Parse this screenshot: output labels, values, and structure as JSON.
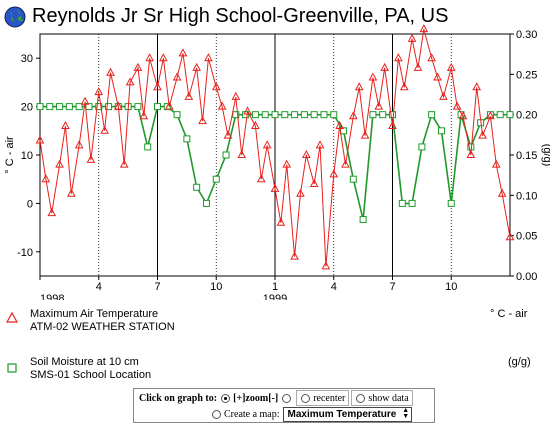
{
  "title": "Reynolds Jr Sr High School-Greenville, PA, US",
  "icons": {
    "logo": "globe-icon"
  },
  "chart_data": {
    "type": "line",
    "title": "Reynolds Jr Sr High School-Greenville, PA, US",
    "left_axis": {
      "label": "° C - air",
      "ylim": [
        -15,
        35
      ],
      "ticks": [
        -10,
        0,
        10,
        20,
        30
      ]
    },
    "right_axis": {
      "label": "(g/g)",
      "ylim": [
        0,
        0.3
      ],
      "ticks": [
        "0.00",
        "0.05",
        "0.10",
        "0.15",
        "0.20",
        "0.25",
        "0.30"
      ]
    },
    "x_axis": {
      "months": [
        "4",
        "7",
        "10",
        "1",
        "4",
        "7",
        "10"
      ],
      "years": [
        "1998",
        "1999"
      ],
      "xlim_months": [
        0,
        24
      ]
    },
    "series": [
      {
        "name": "Maximum Air Temperature",
        "subtitle": "ATM-02 WEATHER STATION",
        "unit": "° C - air",
        "color": "#e8201c",
        "marker": "triangle",
        "axis": "left",
        "month_index": [
          0,
          0.3,
          0.6,
          1,
          1.3,
          1.6,
          2,
          2.3,
          2.6,
          3,
          3.3,
          3.6,
          4,
          4.3,
          4.6,
          5,
          5.3,
          5.6,
          6,
          6.3,
          6.6,
          7,
          7.3,
          7.6,
          8,
          8.3,
          8.6,
          9,
          9.3,
          9.6,
          10,
          10.3,
          10.6,
          11,
          11.3,
          11.6,
          12,
          12.3,
          12.6,
          13,
          13.3,
          13.6,
          14,
          14.3,
          14.6,
          15,
          15.3,
          15.6,
          16,
          16.3,
          16.6,
          17,
          17.3,
          17.6,
          18,
          18.3,
          18.6,
          19,
          19.3,
          19.6,
          20,
          20.3,
          20.6,
          21,
          21.3,
          21.6,
          22,
          22.3,
          22.6,
          23,
          23.3,
          23.6,
          24
        ],
        "values": [
          13,
          5,
          -2,
          8,
          16,
          2,
          12,
          21,
          9,
          23,
          15,
          27,
          20,
          8,
          25,
          28,
          18,
          30,
          24,
          30,
          20,
          26,
          31,
          22,
          28,
          17,
          30,
          24,
          20,
          14,
          22,
          10,
          19,
          16,
          5,
          12,
          3,
          -4,
          8,
          -11,
          2,
          10,
          4,
          12,
          -13,
          6,
          16,
          8,
          18,
          24,
          14,
          26,
          20,
          28,
          16,
          30,
          24,
          34,
          28,
          36,
          30,
          26,
          22,
          28,
          20,
          18,
          10,
          24,
          14,
          18,
          8,
          2,
          -7
        ]
      },
      {
        "name": "Soil Moisture at 10 cm",
        "subtitle": "SMS-01 School Location",
        "unit": "(g/g)",
        "color": "#1f9a2a",
        "marker": "square",
        "axis": "right",
        "month_index": [
          0,
          0.5,
          1,
          1.5,
          2,
          2.5,
          3,
          3.5,
          4,
          4.5,
          5,
          5.5,
          6,
          6.5,
          7,
          7.5,
          8,
          8.5,
          9,
          9.5,
          10,
          10.5,
          11,
          11.5,
          12,
          12.5,
          13,
          13.5,
          14,
          14.5,
          15,
          15.5,
          16,
          16.5,
          17,
          17.5,
          18,
          18.5,
          19,
          19.5,
          20,
          20.5,
          21,
          21.5,
          22,
          22.5,
          23,
          23.5,
          24
        ],
        "values": [
          0.21,
          0.21,
          0.21,
          0.21,
          0.21,
          0.21,
          0.21,
          0.21,
          0.21,
          0.21,
          0.21,
          0.16,
          0.21,
          0.21,
          0.2,
          0.17,
          0.11,
          0.09,
          0.12,
          0.15,
          0.2,
          0.2,
          0.2,
          0.2,
          0.2,
          0.2,
          0.2,
          0.2,
          0.2,
          0.2,
          0.2,
          0.18,
          0.12,
          0.07,
          0.2,
          0.2,
          0.2,
          0.09,
          0.09,
          0.16,
          0.2,
          0.18,
          0.09,
          0.2,
          0.16,
          0.19,
          0.2,
          0.2,
          0.2
        ]
      }
    ],
    "grid": "vertical month lines",
    "legend_placement": "below"
  },
  "controls": {
    "click_label": "Click on graph to:",
    "zoom_label": "[+]zoom[-]",
    "recenter_label": "recenter",
    "show_data_label": "show data",
    "create_map_label": "Create a map:",
    "map_select_value": "Maximum Temperature"
  }
}
